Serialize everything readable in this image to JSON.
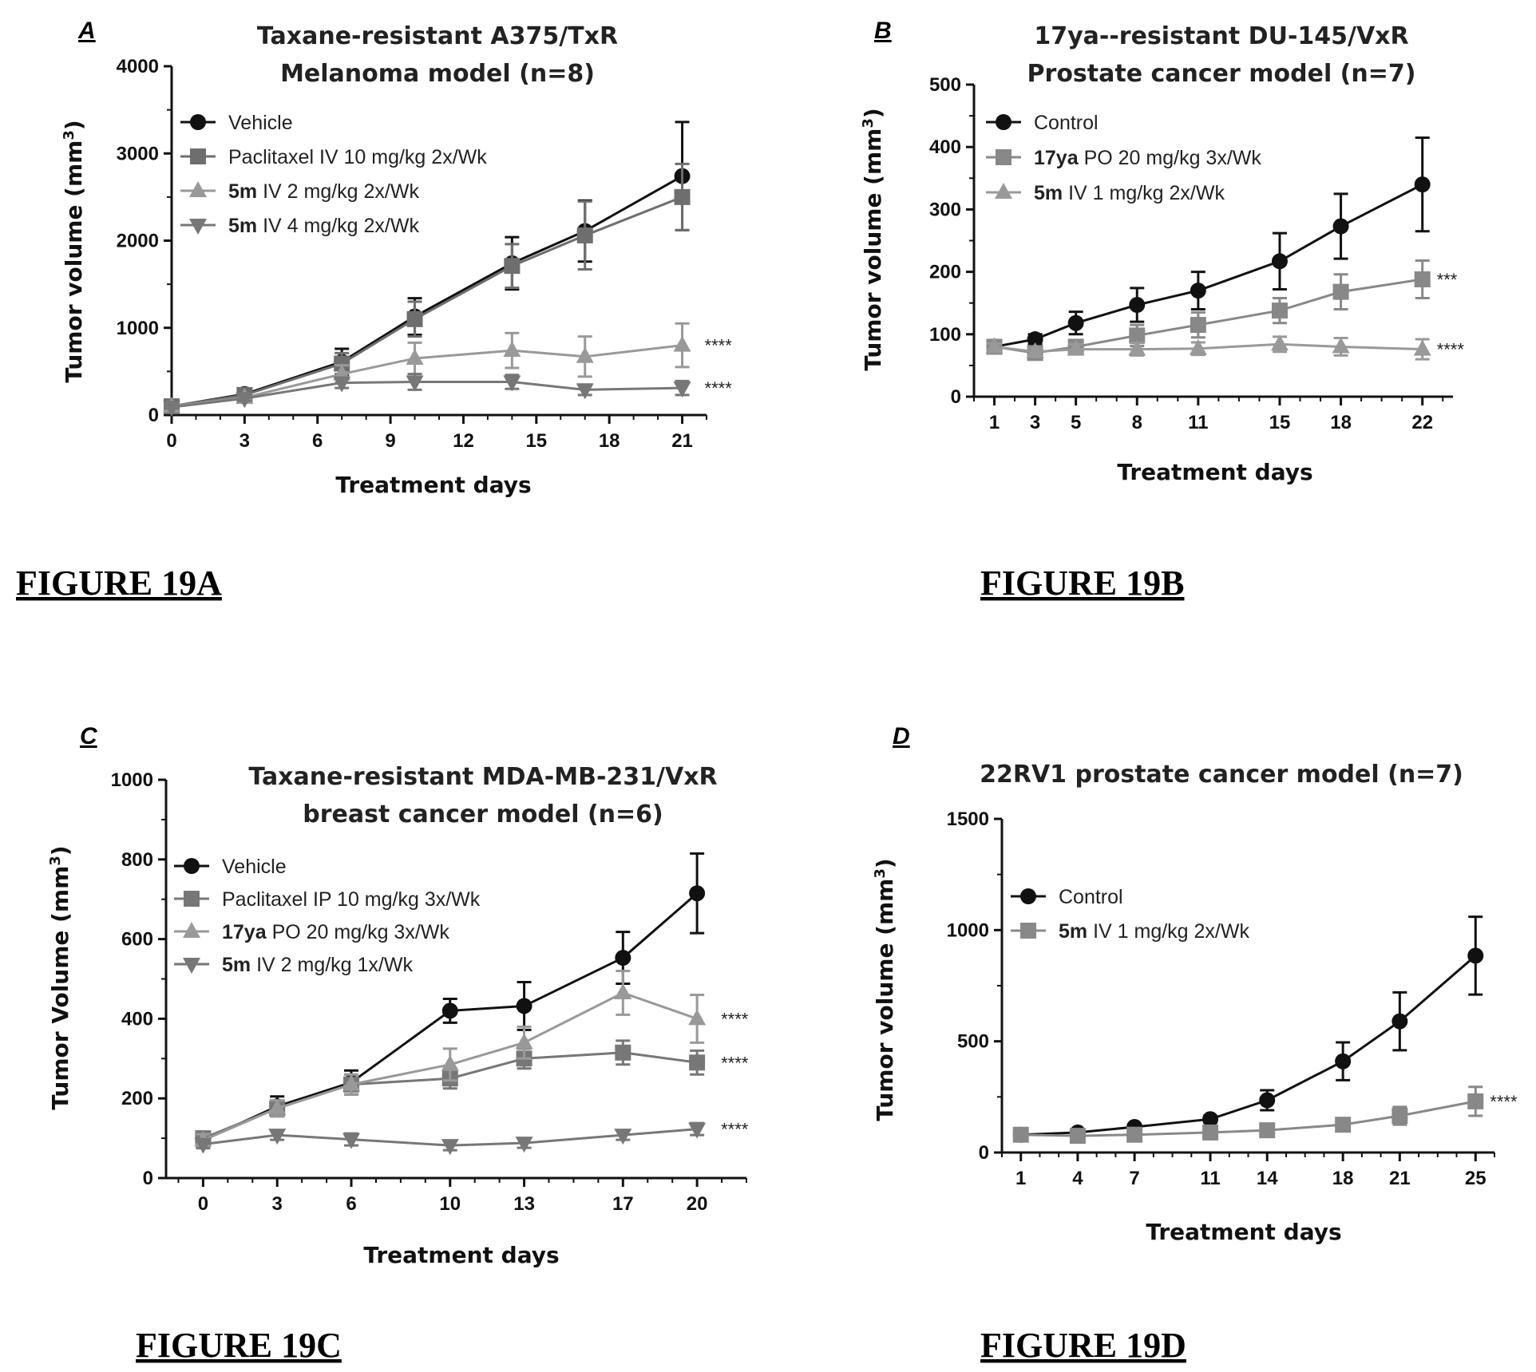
{
  "chart_data": [
    {
      "panel": "A",
      "type": "line",
      "title_lines": [
        "Taxane-resistant A375/TxR",
        "Melanoma model (n=8)"
      ],
      "xlabel": "Treatment days",
      "ylabel": "Tumor volume (mm3)",
      "xlim": [
        0,
        22
      ],
      "ylim": [
        0,
        4000
      ],
      "xticks": [
        0,
        3,
        6,
        9,
        12,
        15,
        18,
        21
      ],
      "yticks": [
        0,
        1000,
        2000,
        3000,
        4000
      ],
      "x": [
        0,
        3,
        7,
        10,
        14,
        17,
        21
      ],
      "legend_position": "top-left",
      "series": [
        {
          "name": "Vehicle",
          "name_bold": "",
          "name_rest": "Vehicle",
          "marker": "circle",
          "color": "#111111",
          "values": [
            100,
            240,
            610,
            1130,
            1740,
            2110,
            2740
          ],
          "err": [
            20,
            30,
            150,
            210,
            300,
            350,
            620
          ]
        },
        {
          "name": "Paclitaxel IV 10 mg/kg 2x/Wk",
          "name_bold": "",
          "name_rest": "Paclitaxel IV 10 mg/kg 2x/Wk",
          "marker": "square",
          "color": "#6e6e6e",
          "values": [
            100,
            230,
            590,
            1100,
            1710,
            2060,
            2500
          ],
          "err": [
            20,
            30,
            120,
            200,
            250,
            390,
            380
          ]
        },
        {
          "name": "5m IV 2 mg/kg 2x/Wk",
          "name_bold": "5m",
          "name_rest": " IV 2 mg/kg 2x/Wk",
          "marker": "triangle",
          "color": "#999999",
          "values": [
            100,
            200,
            470,
            650,
            740,
            670,
            800
          ],
          "err": [
            20,
            30,
            100,
            180,
            200,
            230,
            250
          ],
          "annotation": "****"
        },
        {
          "name": "5m IV 4 mg/kg 2x/Wk",
          "name_bold": "5m",
          "name_rest": " IV 4 mg/kg 2x/Wk",
          "marker": "triangle-down",
          "color": "#777777",
          "values": [
            90,
            190,
            370,
            380,
            380,
            290,
            310
          ],
          "err": [
            15,
            30,
            60,
            90,
            80,
            60,
            80
          ],
          "annotation": "****"
        }
      ]
    },
    {
      "panel": "B",
      "type": "line",
      "title_lines": [
        "17ya--resistant DU-145/VxR",
        "Prostate cancer model (n=7)"
      ],
      "xlabel": "Treatment days",
      "ylabel": "Tumor volume (mm3)",
      "xlim": [
        0,
        23.5
      ],
      "ylim": [
        0,
        500
      ],
      "xticks": [
        1,
        3,
        5,
        8,
        11,
        15,
        18,
        22
      ],
      "yticks": [
        0,
        100,
        200,
        300,
        400,
        500
      ],
      "x": [
        1,
        3,
        5,
        8,
        11,
        15,
        18,
        22
      ],
      "legend_position": "top-left",
      "series": [
        {
          "name": "Control",
          "name_bold": "",
          "name_rest": "Control",
          "marker": "circle",
          "color": "#111111",
          "values": [
            80,
            92,
            118,
            147,
            170,
            217,
            273,
            340
          ],
          "err": [
            5,
            8,
            18,
            27,
            30,
            45,
            52,
            75
          ]
        },
        {
          "name": "17ya PO 20 mg/kg 3x/Wk",
          "name_bold": "17ya",
          "name_rest": " PO 20 mg/kg 3x/Wk",
          "marker": "square",
          "color": "#888888",
          "values": [
            80,
            70,
            80,
            98,
            115,
            138,
            168,
            188
          ],
          "err": [
            5,
            8,
            10,
            17,
            20,
            20,
            28,
            30
          ],
          "annotation": "***"
        },
        {
          "name": "5m IV 1 mg/kg 2x/Wk",
          "name_bold": "5m",
          "name_rest": " IV 1 mg/kg 2x/Wk",
          "marker": "triangle",
          "color": "#999999",
          "values": [
            80,
            72,
            76,
            76,
            77,
            84,
            80,
            76
          ],
          "err": [
            5,
            6,
            8,
            10,
            10,
            12,
            14,
            16
          ],
          "annotation": "****"
        }
      ]
    },
    {
      "panel": "C",
      "type": "line",
      "title_lines": [
        "Taxane-resistant MDA-MB-231/VxR",
        "breast cancer model (n=6)"
      ],
      "xlabel": "Treatment days",
      "ylabel": "Tumor Volume (mm3)",
      "xlim": [
        -1.5,
        22
      ],
      "ylim": [
        0,
        1000
      ],
      "xticks": [
        0,
        3,
        6,
        10,
        13,
        17,
        20
      ],
      "yticks": [
        0,
        200,
        400,
        600,
        800,
        1000
      ],
      "x": [
        0,
        3,
        6,
        10,
        13,
        17,
        20
      ],
      "legend_position": "top-left",
      "series": [
        {
          "name": "Vehicle",
          "name_bold": "",
          "name_rest": "Vehicle",
          "marker": "circle",
          "color": "#111111",
          "values": [
            95,
            180,
            240,
            420,
            432,
            553,
            715
          ],
          "err": [
            15,
            25,
            30,
            30,
            60,
            65,
            100
          ]
        },
        {
          "name": "Paclitaxel IP 10 mg/kg 3x/Wk",
          "name_bold": "",
          "name_rest": "Paclitaxel IP 10 mg/kg 3x/Wk",
          "marker": "square",
          "color": "#777777",
          "values": [
            100,
            175,
            235,
            250,
            300,
            315,
            290
          ],
          "err": [
            15,
            20,
            25,
            25,
            25,
            30,
            30
          ],
          "annotation": "****"
        },
        {
          "name": "17ya PO 20 mg/kg 3x/Wk",
          "name_bold": "17ya",
          "name_rest": " PO 20 mg/kg 3x/Wk",
          "marker": "triangle",
          "color": "#999999",
          "values": [
            95,
            175,
            235,
            285,
            340,
            465,
            400
          ],
          "err": [
            15,
            20,
            25,
            40,
            40,
            55,
            60
          ],
          "annotation": "****"
        },
        {
          "name": "5m IV 2 mg/kg 1x/Wk",
          "name_bold": "5m",
          "name_rest": " IV 2 mg/kg 1x/Wk",
          "marker": "triangle-down",
          "color": "#777777",
          "values": [
            85,
            108,
            97,
            82,
            88,
            108,
            123
          ],
          "err": [
            10,
            12,
            15,
            12,
            12,
            12,
            15
          ],
          "annotation": "****"
        }
      ]
    },
    {
      "panel": "D",
      "type": "line",
      "title_lines": [
        "22RV1 prostate cancer model (n=7)"
      ],
      "xlabel": "Treatment days",
      "ylabel": "Tumor volume (mm3)",
      "xlim": [
        0,
        26
      ],
      "ylim": [
        0,
        1500
      ],
      "xticks": [
        1,
        4,
        7,
        11,
        14,
        18,
        21,
        25
      ],
      "yticks": [
        0,
        500,
        1000,
        1500
      ],
      "x": [
        1,
        4,
        7,
        11,
        14,
        18,
        21,
        25
      ],
      "legend_position": "top-left",
      "series": [
        {
          "name": "Control",
          "name_bold": "",
          "name_rest": "Control",
          "marker": "circle",
          "color": "#111111",
          "values": [
            80,
            90,
            115,
            150,
            235,
            410,
            590,
            885
          ],
          "err": [
            8,
            10,
            12,
            15,
            45,
            85,
            130,
            175
          ]
        },
        {
          "name": "5m IV 1 mg/kg 2x/Wk",
          "name_bold": "5m",
          "name_rest": " IV 1 mg/kg 2x/Wk",
          "marker": "square",
          "color": "#888888",
          "values": [
            80,
            75,
            80,
            90,
            100,
            125,
            165,
            230
          ],
          "err": [
            8,
            8,
            10,
            10,
            12,
            20,
            40,
            65
          ],
          "annotation": "****"
        }
      ]
    }
  ],
  "figure_labels": [
    "FIGURE 19A",
    "FIGURE 19B",
    "FIGURE 19C",
    "FIGURE 19D"
  ]
}
